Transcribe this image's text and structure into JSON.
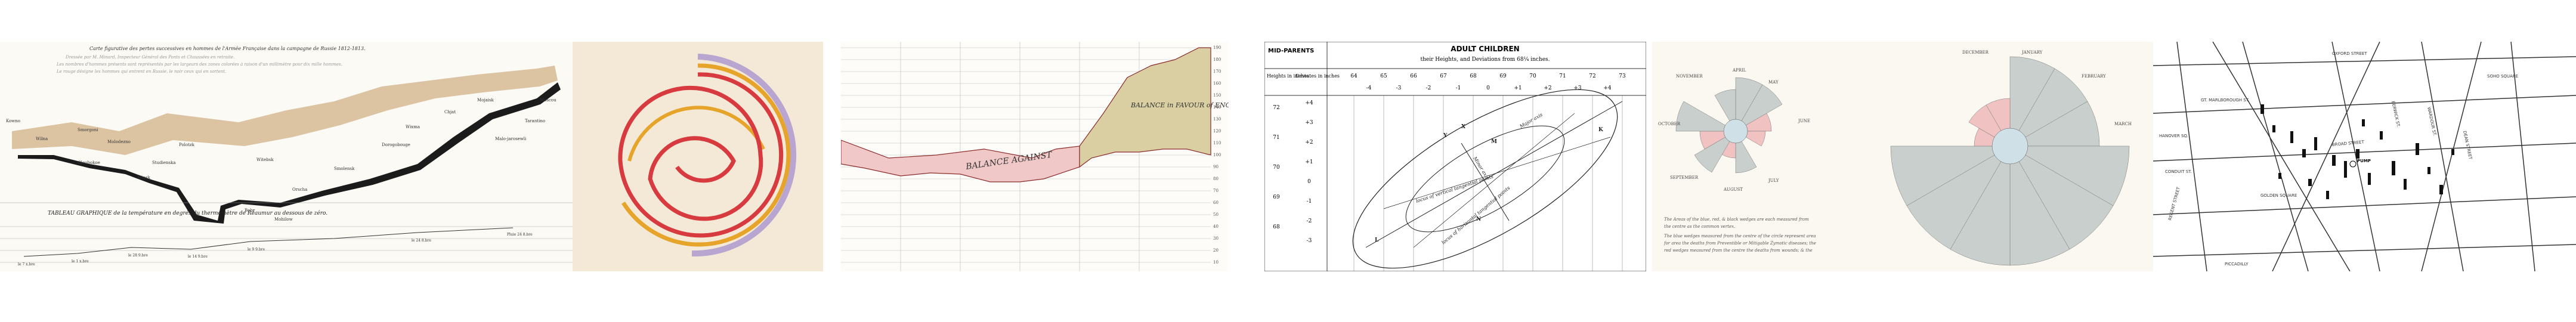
{
  "colors": {
    "page_bg": "#ffffff",
    "advance_tan": "#dcc4a3",
    "retreat_black": "#1b1b1b",
    "spiral_paper": "#f4e9d6",
    "spiral_red": "#d73a3f",
    "spiral_yellow": "#e6a52a",
    "spiral_lavender": "#b8a6d1",
    "balance_red": "#f1c8c8",
    "balance_olive": "#d9cfa2",
    "rose_pink": "#f0c2c2",
    "rose_grey": "#c9cfcc",
    "rose_blue": "#cfe0e6"
  },
  "minard": {
    "title_note": "Carte figurative des pertes successives en hommes de l'Armée Française dans la campagne de Russie 1812-1813.",
    "cities": [
      "Kowno",
      "Wilna",
      "Smorgoni",
      "Molodezno",
      "Gloubokoe",
      "Minsk",
      "Studienska",
      "Polotzk",
      "Bobr",
      "Witebsk",
      "Orscha",
      "Mohilow",
      "Smolensk",
      "Dorogobouge",
      "Wixma",
      "Chjat",
      "Mojaisk",
      "Moscou",
      "Tarantino",
      "Malo-jarosewli"
    ],
    "temp_title": "TABLEAU GRAPHIQUE de la température en degrés du thermomètre de Réaumur au dessous de zéro.",
    "temp_dates": [
      "le 7 x.bre",
      "le 1 x.bre",
      "le 28 9.bre",
      "le 14 9.bre",
      "le 9 9.bre",
      "le 24 8.bre",
      "Pluie 24 8.bre"
    ],
    "temp_values": [
      "-30°",
      "-24°",
      "-20°",
      "-11°",
      "-21°",
      "-9°",
      "0°"
    ]
  },
  "exports": {
    "title": "BALANCE in FAVOUR of ENGLAND.",
    "against": "BALANCE AGAINST",
    "right_ticks": [
      "190",
      "180",
      "170",
      "160",
      "150",
      "140",
      "130",
      "120",
      "110",
      "100",
      "90",
      "80",
      "70",
      "60",
      "50",
      "40",
      "30",
      "20",
      "10"
    ]
  },
  "galton": {
    "header_left": "MID-PARENTS",
    "header_title": "ADULT CHILDREN",
    "header_subtitle": "their Heights, and Deviations from 68¼ inches.",
    "col_heights": [
      "64",
      "65",
      "66",
      "67",
      "68",
      "69",
      "70",
      "71",
      "72",
      "73"
    ],
    "col_devs": [
      "-4",
      "-3",
      "-2",
      "-1",
      "0",
      "+1",
      "+2",
      "+3",
      "+4"
    ],
    "row_head_1": "Heights in inches",
    "row_head_2": "Deviates in inches",
    "row_heights": [
      "72",
      "71",
      "70",
      "69",
      "68"
    ],
    "row_devs": [
      "+4",
      "+3",
      "+2",
      "+1",
      "0",
      "-1",
      "-2",
      "-3"
    ],
    "axis_label_major": "Major axis",
    "axis_label_minor": "Minor axis",
    "axis_label_locus": "locus of vertical tangential points",
    "axis_label_horizontal": "locus of horizontal tangential points",
    "point_m": "M",
    "point_n": "N",
    "point_k": "K",
    "point_l": "L",
    "point_x": "X",
    "point_y": "Y"
  },
  "nightingale": {
    "months": [
      "APRIL",
      "MAY",
      "JUNE",
      "JULY",
      "AUGUST",
      "SEPTEMBER",
      "OCTOBER",
      "NOVEMBER",
      "DECEMBER",
      "JANUARY",
      "FEBRUARY",
      "MARCH"
    ],
    "caption_1": "The Areas of the blue, red, & black wedges are each measured from",
    "caption_2": "the centre as the common vertex.",
    "caption_3": "The blue wedges measured from the centre of the circle represent area",
    "caption_4": "for area the deaths from Preventible or Mitigable Zymotic diseases; the",
    "caption_5": "red wedges measured from the centre the deaths from wounds; & the"
  },
  "snow": {
    "streets": [
      "OXFORD STREET",
      "REGENT STREET",
      "BROAD STREET",
      "GOLDEN SQUARE",
      "SOHO SQUARE",
      "DEAN STREET",
      "WARDOUR ST.",
      "BERWICK ST.",
      "GT. MARLBOROUGH ST.",
      "CONDUIT ST.",
      "PICCADILLY",
      "HANOVER SQ."
    ],
    "pump_label": "PUMP"
  }
}
